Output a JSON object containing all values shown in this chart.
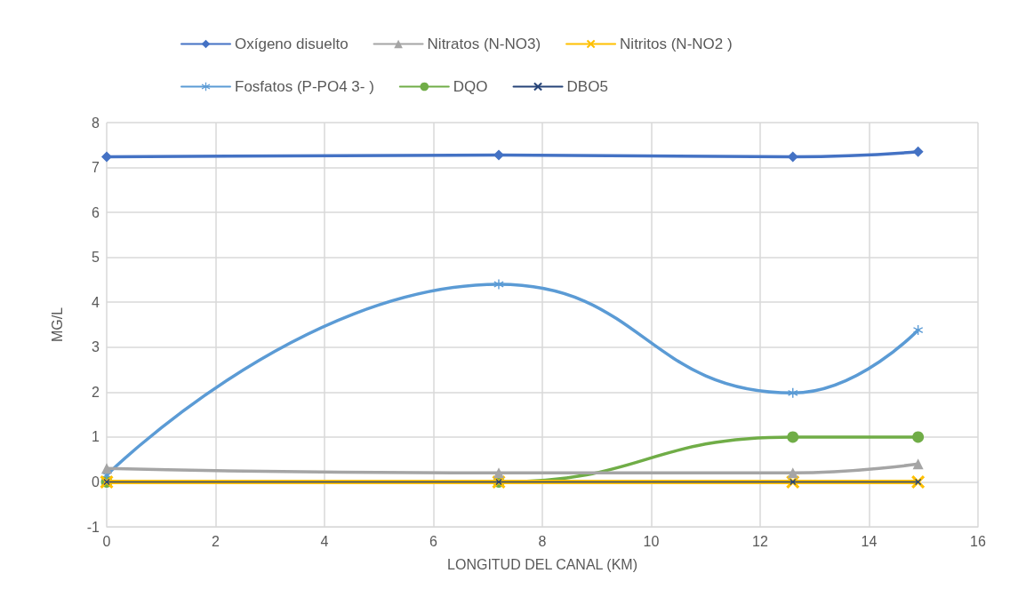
{
  "chart_data": {
    "type": "line",
    "xlabel": "LONGITUD DEL CANAL (KM)",
    "ylabel": "MG/L",
    "x": [
      0,
      7.2,
      12.6,
      14.9
    ],
    "series": [
      {
        "name": "Oxígeno disuelto",
        "color": "#4472c4",
        "marker": "diamond",
        "values": [
          7.24,
          7.28,
          7.24,
          7.35
        ]
      },
      {
        "name": "Nitratos (N-NO3)",
        "color": "#a5a5a5",
        "marker": "triangle",
        "values": [
          0.3,
          0.2,
          0.2,
          0.4
        ]
      },
      {
        "name": "Nitritos (N-NO2 )",
        "color": "#ffc000",
        "marker": "cross",
        "values": [
          0,
          0,
          0,
          0
        ]
      },
      {
        "name": "Fosfatos (P-PO4 3- )",
        "color": "#5b9bd5",
        "marker": "star",
        "values": [
          0.15,
          4.4,
          1.98,
          3.38
        ]
      },
      {
        "name": "DQO",
        "color": "#70ad47",
        "marker": "circle",
        "values": [
          0,
          0,
          1,
          1
        ]
      },
      {
        "name": "DBO5",
        "color": "#264478",
        "marker": "cross",
        "values": [
          0,
          0,
          0,
          0
        ]
      }
    ],
    "xlim": [
      0,
      16
    ],
    "xticks": [
      0,
      2,
      4,
      6,
      8,
      10,
      12,
      14,
      16
    ],
    "ylim": [
      -1,
      8
    ],
    "yticks": [
      -1,
      0,
      1,
      2,
      3,
      4,
      5,
      6,
      7,
      8
    ],
    "grid": true,
    "legend": "top",
    "line_style": "solid"
  }
}
